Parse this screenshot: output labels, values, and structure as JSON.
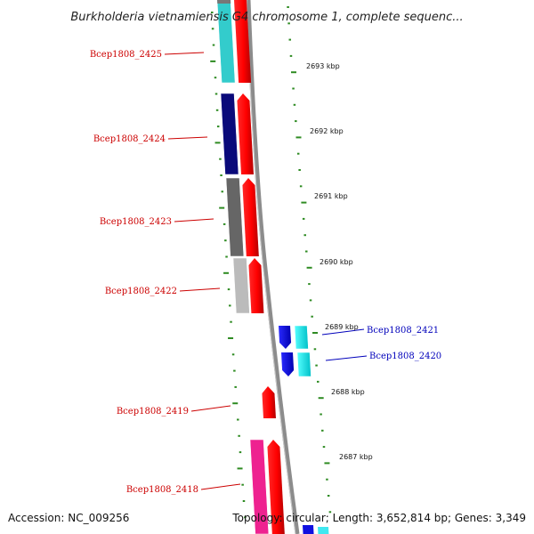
{
  "title": "Burkholderia vietnamiensis G4 chromosome 1, complete sequenc...",
  "accession": "Accession: NC_009256",
  "topology": "Topology: circular; Length: 3,652,814 bp; Genes: 3,349",
  "colors": {
    "forward_label": "#cc0000",
    "reverse_label": "#0000bb",
    "tick": "#2e8b22",
    "backbone": "#8c8c8c"
  },
  "kbp_ticks": [
    {
      "label": "2693 kbp"
    },
    {
      "label": "2692 kbp"
    },
    {
      "label": "2691 kbp"
    },
    {
      "label": "2690 kbp"
    },
    {
      "label": "2689 kbp"
    },
    {
      "label": "2688 kbp"
    },
    {
      "label": "2687 kbp"
    }
  ],
  "genes": [
    {
      "label": "Bcep1808_2425",
      "strand": "forward",
      "cog_color": "#33cccc"
    },
    {
      "label": "Bcep1808_2424",
      "strand": "forward",
      "cog_color": "#0a0a7a"
    },
    {
      "label": "Bcep1808_2423",
      "strand": "forward",
      "cog_color": "#666666"
    },
    {
      "label": "Bcep1808_2422",
      "strand": "forward",
      "cog_color": "#bbbbbb"
    },
    {
      "label": "Bcep1808_2421",
      "strand": "reverse",
      "cog_color": "#00e0e0"
    },
    {
      "label": "Bcep1808_2420",
      "strand": "reverse",
      "cog_color": "#00e0e0"
    },
    {
      "label": "Bcep1808_2419",
      "strand": "forward",
      "cog_color": null
    },
    {
      "label": "Bcep1808_2418",
      "strand": "forward",
      "cog_color": "#ee2290"
    }
  ]
}
